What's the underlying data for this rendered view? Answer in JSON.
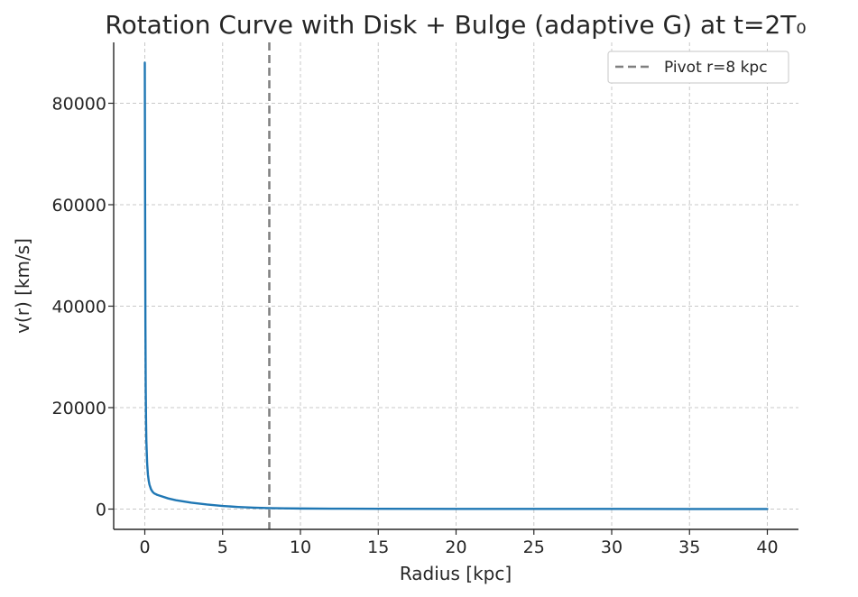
{
  "chart_data": {
    "type": "line",
    "title": "Rotation Curve with Disk + Bulge (adaptive G) at t=2T₀",
    "xlabel": "Radius [kpc]",
    "ylabel": "v(r) [km/s]",
    "xlim": [
      -2,
      42
    ],
    "ylim": [
      -4000,
      92000
    ],
    "grid": true,
    "legend_position": "top-right",
    "x_ticks": [
      0,
      5,
      10,
      15,
      20,
      25,
      30,
      35,
      40
    ],
    "y_ticks": [
      0,
      20000,
      40000,
      60000,
      80000
    ],
    "series": [
      {
        "name": "",
        "color": "#1f77b4",
        "x": [
          0.0,
          0.02,
          0.04,
          0.06,
          0.08,
          0.1,
          0.15,
          0.2,
          0.25,
          0.3,
          0.4,
          0.5,
          0.6,
          0.8,
          1,
          1.5,
          2,
          3,
          4,
          5,
          6,
          7,
          8,
          9,
          10,
          12,
          15,
          20,
          25,
          30,
          35,
          40
        ],
        "y": [
          88000,
          60000,
          36000,
          24000,
          17500,
          13500,
          9000,
          6800,
          5600,
          4800,
          3900,
          3400,
          3100,
          2800,
          2600,
          2100,
          1750,
          1250,
          900,
          620,
          420,
          280,
          190,
          140,
          110,
          80,
          55,
          40,
          30,
          25,
          20,
          18
        ]
      }
    ],
    "annotations": [
      {
        "type": "vline",
        "x": 8,
        "label": "Pivot r=8 kpc",
        "color": "#7f7f7f",
        "style": "dashed"
      }
    ]
  }
}
